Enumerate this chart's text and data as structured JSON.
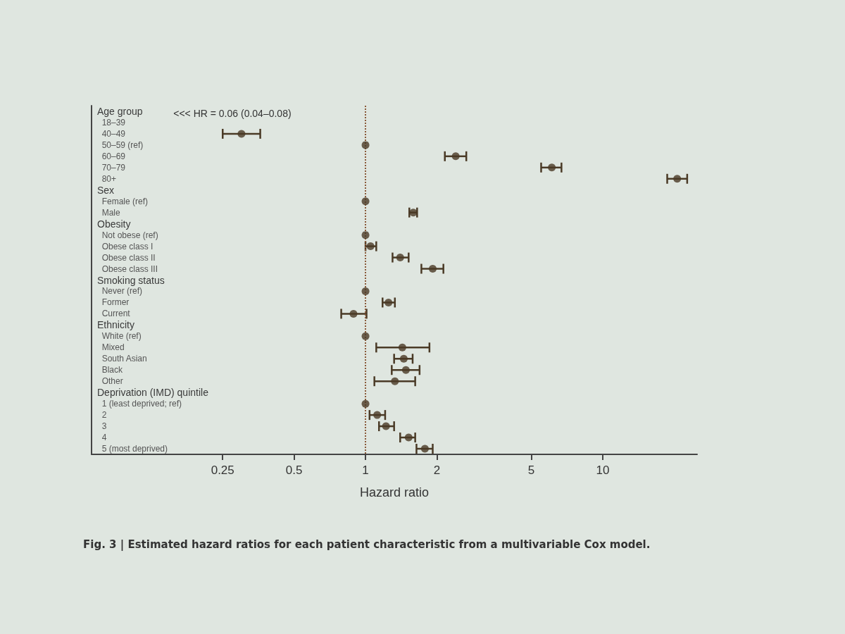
{
  "chart_data": {
    "type": "scatter",
    "orientation": "horizontal",
    "xlabel": "Hazard ratio",
    "categories": [
      "Age group",
      "18–39",
      "40–49",
      "50–59 (ref)",
      "60–69",
      "70–79",
      "80+",
      "Sex",
      "Female (ref)",
      "Male",
      "Obesity",
      "Not obese (ref)",
      "Obese class I",
      "Obese class II",
      "Obese class III",
      "Smoking status",
      "Never (ref)",
      "Former",
      "Current",
      "Ethnicity",
      "White (ref)",
      "Mixed",
      "South Asian",
      "Black",
      "Other",
      "Deprivation (IMD) quintile",
      "1 (least deprived; ref)",
      "2",
      "3",
      "4",
      "5 (most deprived)"
    ],
    "series": [
      {
        "color": "#4a3a26",
        "values": [
          null,
          null,
          0.3,
          1,
          2.4,
          6.1,
          20.6,
          null,
          1,
          1.59,
          null,
          1,
          1.05,
          1.4,
          1.92,
          null,
          1,
          1.25,
          0.89,
          null,
          1,
          1.43,
          1.45,
          1.48,
          1.33,
          null,
          1,
          1.12,
          1.22,
          1.52,
          1.78
        ],
        "errors": [
          null,
          null,
          [
            0.25,
            0.36
          ],
          null,
          [
            2.16,
            2.66
          ],
          [
            5.5,
            6.7
          ],
          [
            18.7,
            22.7
          ],
          null,
          null,
          [
            1.53,
            1.65
          ],
          null,
          null,
          [
            1.0,
            1.11
          ],
          [
            1.3,
            1.52
          ],
          [
            1.72,
            2.13
          ],
          null,
          null,
          [
            1.18,
            1.33
          ],
          [
            0.79,
            1.01
          ],
          null,
          null,
          [
            1.11,
            1.86
          ],
          [
            1.32,
            1.58
          ],
          [
            1.29,
            1.69
          ],
          [
            1.09,
            1.62
          ],
          null,
          null,
          [
            1.04,
            1.21
          ],
          [
            1.14,
            1.32
          ],
          [
            1.4,
            1.62
          ],
          [
            1.64,
            1.92
          ]
        ]
      }
    ],
    "log": "x",
    "xlim": [
      0.07,
      25
    ],
    "xticks": [
      0.25,
      0.5,
      1,
      2,
      5,
      10
    ],
    "ref_lines": [
      {
        "axis": "x",
        "value": 1,
        "line_style": "dotted",
        "color": "#8a5a3a"
      }
    ],
    "annotations": [
      "<<< HR = 0.06 (0.04–0.08)",
      "Fig. 3 | Estimated hazard ratios for each patient characteristic from a multivariable Cox model."
    ],
    "marker": "circle",
    "grid": false
  }
}
